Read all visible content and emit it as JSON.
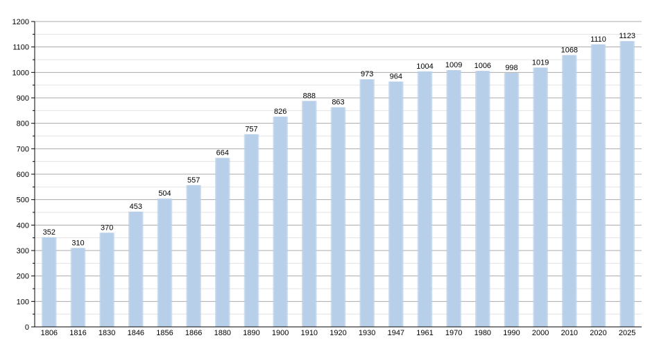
{
  "chart_data": {
    "type": "bar",
    "categories": [
      "1806",
      "1816",
      "1830",
      "1846",
      "1856",
      "1866",
      "1880",
      "1890",
      "1900",
      "1910",
      "1920",
      "1930",
      "1947",
      "1961",
      "1970",
      "1980",
      "1990",
      "2000",
      "2010",
      "2020",
      "2025"
    ],
    "values": [
      352,
      310,
      370,
      453,
      504,
      557,
      664,
      757,
      826,
      888,
      863,
      973,
      964,
      1004,
      1009,
      1006,
      998,
      1019,
      1068,
      1110,
      1123
    ],
    "title": "",
    "xlabel": "",
    "ylabel": "",
    "ylim": [
      0,
      1200
    ],
    "y_ticks": [
      "0",
      "100",
      "200",
      "300",
      "400",
      "500",
      "600",
      "700",
      "800",
      "900",
      "1000",
      "1100",
      "1200"
    ],
    "grid": true,
    "bar_color": "#b7cfe8",
    "grid_color": "#aaaaaa",
    "minor_grid_color": "#e3e3e3"
  }
}
